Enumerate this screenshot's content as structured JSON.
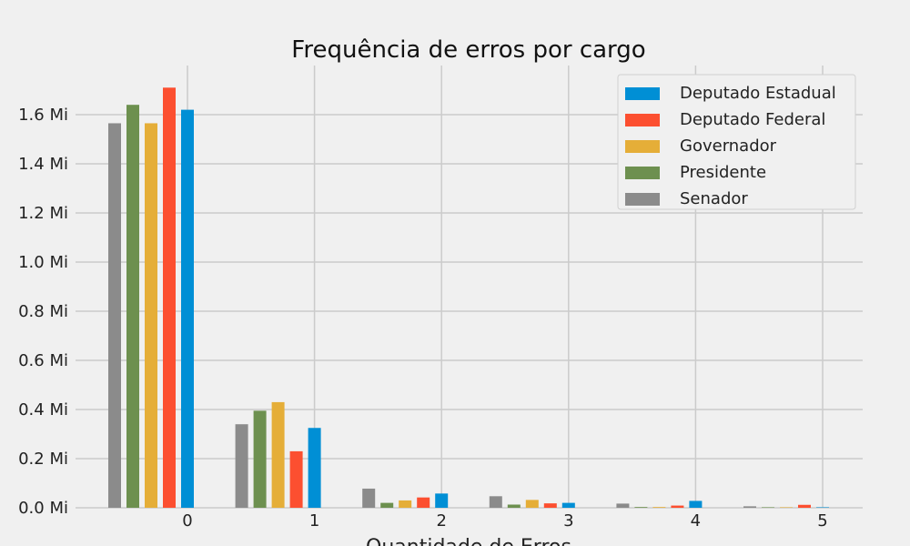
{
  "chart_data": {
    "type": "bar",
    "title": "Frequência de erros por cargo",
    "xlabel": "Quantidade de Erros",
    "ylabel": "",
    "categories": [
      "0",
      "1",
      "2",
      "3",
      "4",
      "5"
    ],
    "y_unit_suffix": " Mi",
    "ylim": [
      0,
      1.8
    ],
    "yticks": [
      "0.0 Mi",
      "0.2 Mi",
      "0.4 Mi",
      "0.6 Mi",
      "0.8 Mi",
      "1.0 Mi",
      "1.2 Mi",
      "1.4 Mi",
      "1.6 Mi"
    ],
    "grid": true,
    "legend_position": "top-right",
    "series": [
      {
        "name": "Senador",
        "color": "#8b8b8b",
        "values": [
          1.565,
          0.34,
          0.078,
          0.047,
          0.017,
          0.006
        ]
      },
      {
        "name": "Presidente",
        "color": "#6d904f",
        "values": [
          1.64,
          0.395,
          0.02,
          0.013,
          0.003,
          0.002
        ]
      },
      {
        "name": "Governador",
        "color": "#e5ae38",
        "values": [
          1.565,
          0.43,
          0.03,
          0.032,
          0.003,
          0.002
        ]
      },
      {
        "name": "Deputado Federal",
        "color": "#fc4f30",
        "values": [
          1.71,
          0.23,
          0.042,
          0.018,
          0.009,
          0.012
        ]
      },
      {
        "name": "Deputado Estadual",
        "color": "#008fd5",
        "values": [
          1.62,
          0.325,
          0.058,
          0.02,
          0.028,
          0.002
        ]
      }
    ],
    "legend_order": [
      "Deputado Estadual",
      "Deputado Federal",
      "Governador",
      "Presidente",
      "Senador"
    ]
  }
}
